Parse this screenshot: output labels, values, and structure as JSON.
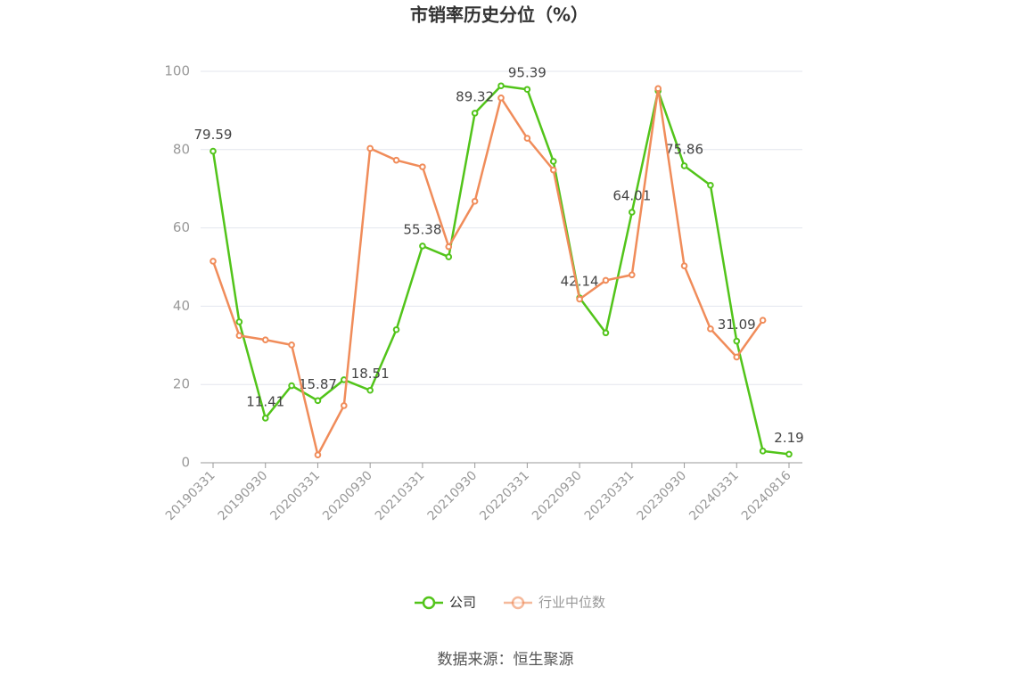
{
  "chart_data": {
    "type": "line",
    "title": "市销率历史分位（%）",
    "categories": [
      "20190331",
      null,
      "20190930",
      null,
      "20200331",
      null,
      "20200930",
      null,
      "20210331",
      null,
      "20210930",
      null,
      "20220331",
      null,
      "20220930",
      null,
      "20230331",
      null,
      "20230930",
      null,
      "20240331",
      null,
      "20240816"
    ],
    "series": [
      {
        "name": "公司",
        "color": "#52c41a",
        "values": [
          79.59,
          36,
          11.41,
          19.7,
          15.87,
          21.2,
          18.51,
          34,
          55.38,
          52.6,
          89.32,
          96.3,
          95.39,
          77,
          42.14,
          33.2,
          64.01,
          95,
          75.86,
          70.9,
          31.09,
          3.0,
          2.19
        ]
      },
      {
        "name": "行业中位数",
        "color": "#f08c5a",
        "values": [
          51.5,
          32.5,
          31.4,
          30.1,
          2.0,
          14.6,
          80.3,
          77.3,
          75.6,
          55.2,
          66.8,
          93.2,
          82.9,
          74.8,
          41.8,
          46.6,
          48.0,
          95.6,
          50.3,
          34.2,
          27.0,
          36.4,
          null
        ]
      }
    ],
    "ylim": [
      0,
      100
    ],
    "yticks": [
      0,
      20,
      40,
      60,
      80,
      100
    ],
    "grid": true,
    "source": "数据来源：恒生聚源"
  }
}
